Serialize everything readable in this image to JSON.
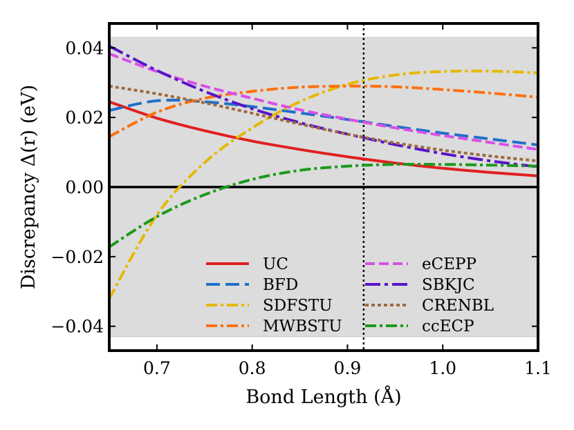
{
  "chart_data": {
    "type": "line",
    "xlabel": "Bond Length (Å)",
    "ylabel": "Discrepancy Δ(r) (eV)",
    "xlim": [
      0.65,
      1.1
    ],
    "ylim": [
      -0.047,
      0.047
    ],
    "x_ticks": [
      0.7,
      0.8,
      0.9,
      1.0,
      1.1
    ],
    "x_tick_labels": [
      "0.7",
      "0.8",
      "0.9",
      "1.0",
      "1.1"
    ],
    "y_ticks": [
      -0.04,
      -0.02,
      0.0,
      0.02,
      0.04
    ],
    "y_tick_labels": [
      "−0.04",
      "−0.02",
      "0.00",
      "0.02",
      "0.04"
    ],
    "shaded_band": [
      -0.043,
      0.043
    ],
    "shaded_color": "#dcdcdc",
    "zero_line": 0.0,
    "vertical_line_x": 0.917,
    "legend_position": "lower-right",
    "x": [
      0.65,
      0.7,
      0.75,
      0.8,
      0.85,
      0.9,
      0.95,
      1.0,
      1.05,
      1.1
    ],
    "series": [
      {
        "name": "UC",
        "color": "#e02020",
        "dash": "solid",
        "values": [
          0.0245,
          0.0198,
          0.0162,
          0.0132,
          0.0108,
          0.0087,
          0.0069,
          0.0054,
          0.0042,
          0.0032
        ]
      },
      {
        "name": "BFD",
        "color": "#1f6fc8",
        "dash": "long-dash",
        "values": [
          0.022,
          0.0248,
          0.0245,
          0.0231,
          0.0213,
          0.0194,
          0.0174,
          0.0155,
          0.0138,
          0.0121
        ]
      },
      {
        "name": "SDFSTU",
        "color": "#e6b800",
        "dash": "dash-dot",
        "values": [
          -0.032,
          -0.008,
          0.007,
          0.017,
          0.0245,
          0.0295,
          0.0322,
          0.0332,
          0.0333,
          0.0328
        ]
      },
      {
        "name": "MWBSTU",
        "color": "#ff7010",
        "dash": "dash-dot",
        "values": [
          0.0145,
          0.0215,
          0.0255,
          0.0275,
          0.0287,
          0.029,
          0.0288,
          0.028,
          0.027,
          0.0258
        ]
      },
      {
        "name": "eCEPP",
        "color": "#d94fe8",
        "dash": "dash",
        "values": [
          0.0383,
          0.0332,
          0.029,
          0.0255,
          0.0222,
          0.0195,
          0.017,
          0.0148,
          0.0128,
          0.0108
        ]
      },
      {
        "name": "SBKJC",
        "color": "#5a14c8",
        "dash": "long-dash-dot",
        "values": [
          0.0405,
          0.0335,
          0.0275,
          0.0225,
          0.0185,
          0.0152,
          0.0122,
          0.0096,
          0.0075,
          0.0058
        ]
      },
      {
        "name": "CRENBL",
        "color": "#9c6b3f",
        "dash": "dotted",
        "values": [
          0.029,
          0.0268,
          0.0242,
          0.0212,
          0.0181,
          0.0152,
          0.0127,
          0.0106,
          0.0089,
          0.0075
        ]
      },
      {
        "name": "ccECP",
        "color": "#1a9a1a",
        "dash": "dash-dot",
        "values": [
          -0.0172,
          -0.0085,
          -0.0022,
          0.0022,
          0.0048,
          0.006,
          0.0065,
          0.0065,
          0.0063,
          0.006
        ]
      }
    ]
  }
}
